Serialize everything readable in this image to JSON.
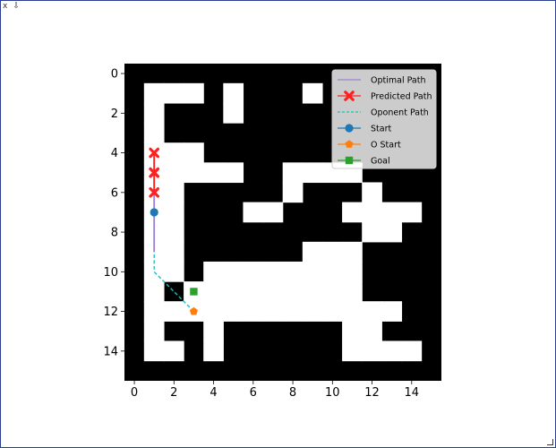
{
  "window": {
    "close_label": "x",
    "pin_label": "⇩"
  },
  "chart_data": {
    "type": "heatmap",
    "title": "",
    "xlabel": "",
    "ylabel": "",
    "xlim": [
      -0.5,
      15.5
    ],
    "ylim": [
      15.5,
      -0.5
    ],
    "xticks": [
      0,
      2,
      4,
      6,
      8,
      10,
      12,
      14
    ],
    "yticks": [
      0,
      2,
      4,
      6,
      8,
      10,
      12,
      14
    ],
    "grid": false,
    "legend_position": "top-right",
    "colors": {
      "wall": "#000000",
      "free": "#ffffff"
    },
    "maze": [
      "0000000000000000",
      "0111010001000000",
      "0100010000000000",
      "0100000000000000",
      "0111000000000000",
      "0111110011110000",
      "0110000010001000",
      "0110001100011110",
      "0110000000001100",
      "0110000001110000",
      "0110111111110000",
      "0101111111110000",
      "0111111111111100",
      "0100100000011000",
      "0110100000011110",
      "0000000000000000"
    ],
    "series": [
      {
        "name": "Optimal Path",
        "color": "#9b7fd6",
        "style": "solid",
        "marker": "none",
        "x": [
          1,
          1,
          1,
          1,
          1,
          1
        ],
        "y": [
          4,
          5,
          6,
          7,
          8,
          9
        ]
      },
      {
        "name": "Predicted Path",
        "color": "#ff2020",
        "style": "solid",
        "marker": "x",
        "x": [
          1,
          1,
          1,
          1
        ],
        "y": [
          4,
          5,
          5,
          6
        ]
      },
      {
        "name": "Oponent Path",
        "color": "#17c3c0",
        "style": "dashed",
        "marker": "none",
        "x": [
          3,
          2,
          1,
          1,
          1,
          1
        ],
        "y": [
          12,
          11,
          10,
          9,
          8,
          7
        ]
      },
      {
        "name": "Start",
        "color": "#1f77b4",
        "style": "none",
        "marker": "circle",
        "x": [
          1
        ],
        "y": [
          7
        ]
      },
      {
        "name": "O Start",
        "color": "#ff7f0e",
        "style": "none",
        "marker": "pentagon",
        "x": [
          3
        ],
        "y": [
          12
        ]
      },
      {
        "name": "Goal",
        "color": "#2ca02c",
        "style": "none",
        "marker": "square",
        "x": [
          3
        ],
        "y": [
          11
        ]
      }
    ]
  }
}
